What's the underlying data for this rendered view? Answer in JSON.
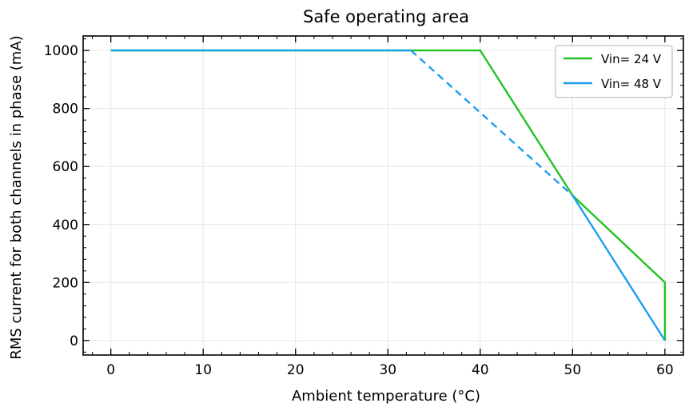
{
  "chart_data": {
    "type": "line",
    "title": "Safe operating area",
    "xlabel": "Ambient temperature (°C)",
    "ylabel": "RMS current for both channels in phase (mA)",
    "xlim": [
      -3,
      62
    ],
    "ylim": [
      -50,
      1050
    ],
    "xticks": [
      0,
      10,
      20,
      30,
      40,
      50,
      60
    ],
    "yticks": [
      0,
      200,
      400,
      600,
      800,
      1000
    ],
    "grid": true,
    "legend_position": "top-right",
    "series": [
      {
        "name": "Vin= 24 V",
        "color": "#22c322",
        "style": "solid",
        "x": [
          0,
          40,
          50,
          60,
          60
        ],
        "y": [
          1000,
          1000,
          500,
          200,
          0
        ]
      },
      {
        "name": "Vin= 48 V",
        "color": "#1a9fee",
        "style": "solid",
        "x": [
          0,
          32.5
        ],
        "y": [
          1000,
          1000
        ]
      },
      {
        "name": "Vin= 48 V",
        "color": "#1a9fee",
        "style": "dashed",
        "x": [
          32.5,
          50
        ],
        "y": [
          1000,
          500
        ]
      },
      {
        "name": "Vin= 48 V",
        "color": "#1a9fee",
        "style": "solid",
        "x": [
          50,
          60
        ],
        "y": [
          500,
          0
        ]
      }
    ],
    "legend": [
      {
        "label": "Vin= 24 V",
        "color": "#22c322"
      },
      {
        "label": "Vin= 48 V",
        "color": "#1a9fee"
      }
    ]
  }
}
